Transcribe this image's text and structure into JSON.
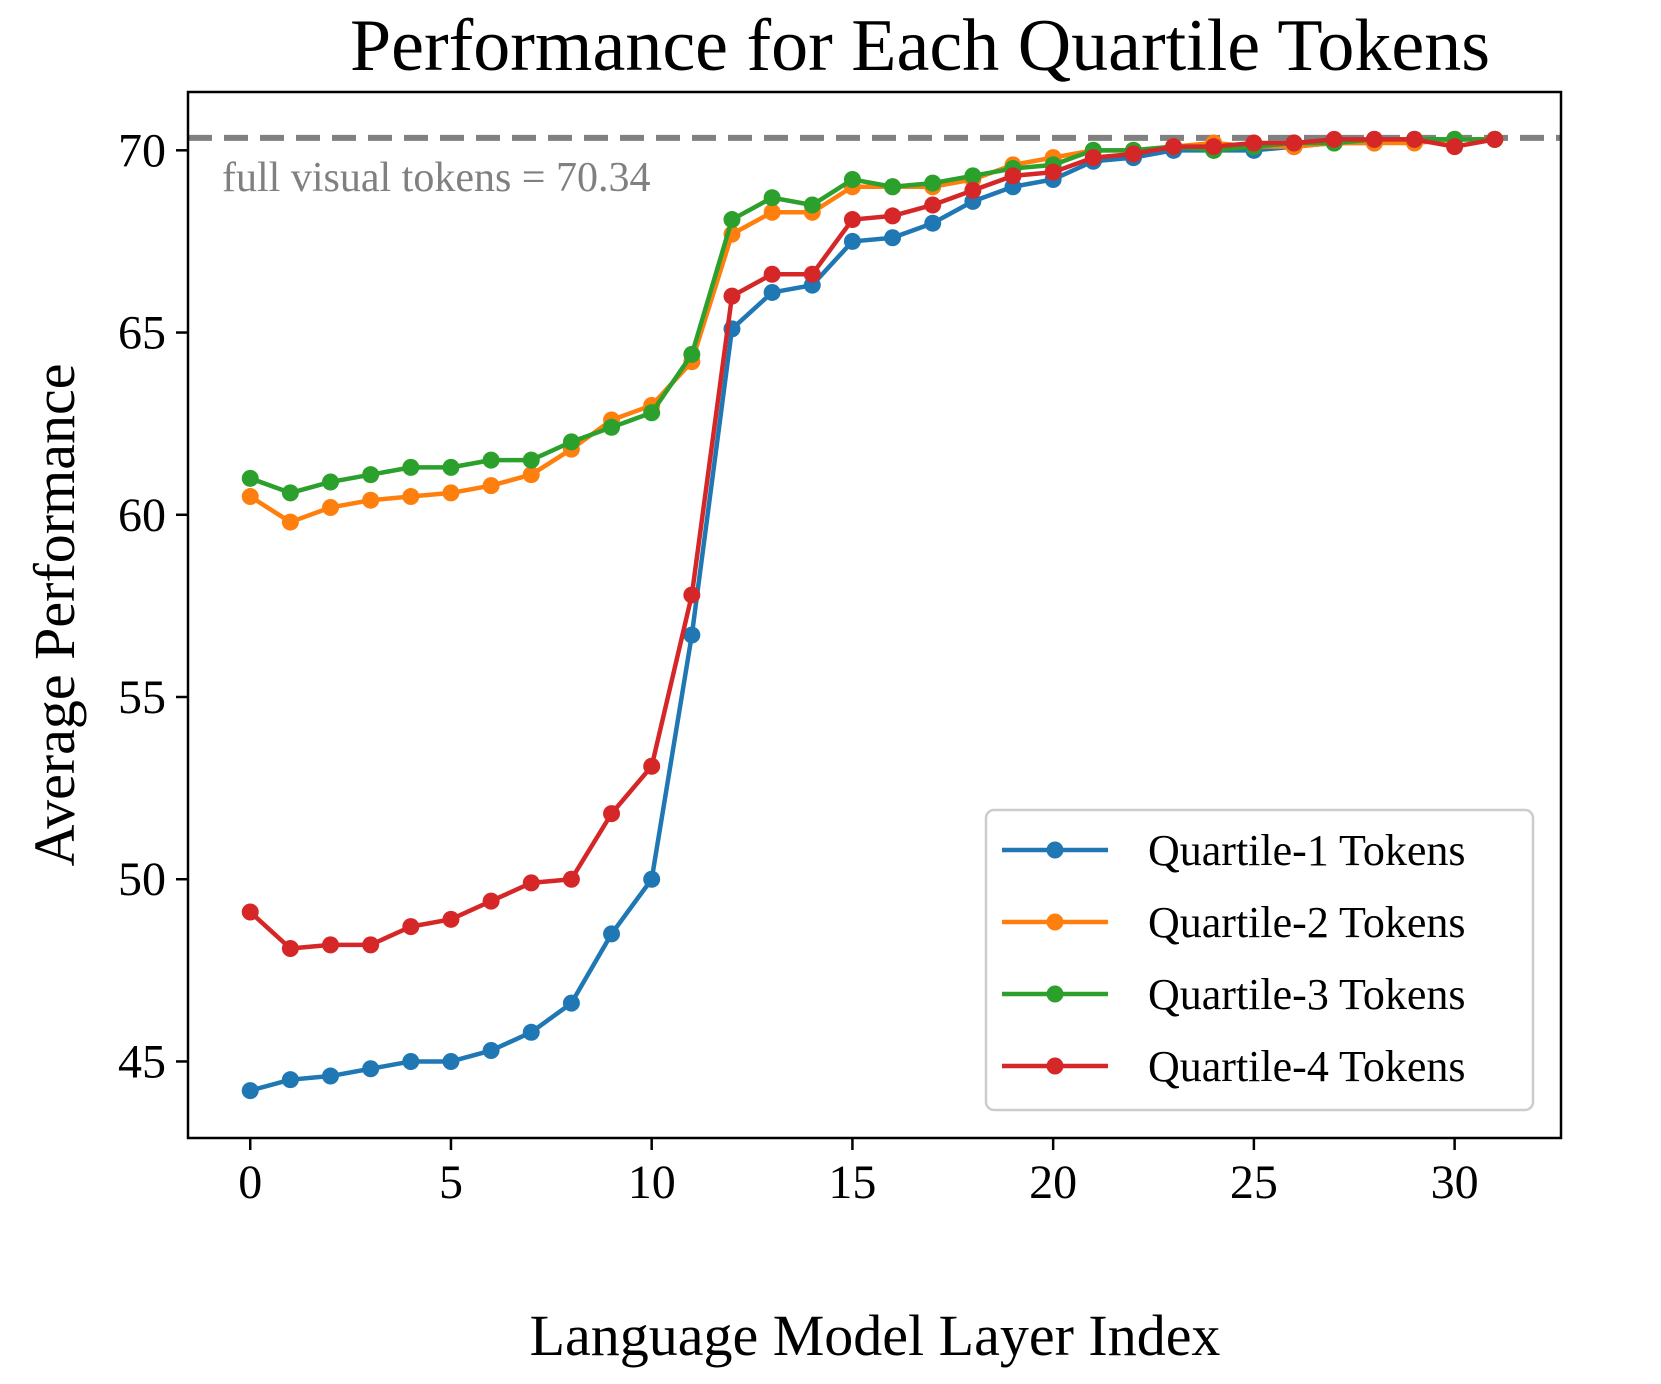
{
  "chart_data": {
    "type": "line",
    "title": "Performance for Each Quartile Tokens",
    "xlabel": "Language Model Layer Index",
    "ylabel": "Average Performance",
    "xlim": [
      -1.55,
      32.65
    ],
    "ylim": [
      42.9,
      71.6
    ],
    "xticks": [
      0,
      5,
      10,
      15,
      20,
      25,
      30
    ],
    "yticks": [
      45,
      50,
      55,
      60,
      65,
      70
    ],
    "grid": false,
    "legend_position": "lower-right",
    "reference_line": {
      "value": 70.34,
      "label": "full visual tokens = 70.34",
      "color": "#808080",
      "style": "dashed"
    },
    "x": [
      0,
      1,
      2,
      3,
      4,
      5,
      6,
      7,
      8,
      9,
      10,
      11,
      12,
      13,
      14,
      15,
      16,
      17,
      18,
      19,
      20,
      21,
      22,
      23,
      24,
      25,
      26,
      27,
      28,
      29,
      30,
      31
    ],
    "series": [
      {
        "name": "Quartile-1 Tokens",
        "color": "#1f77b4",
        "values": [
          44.2,
          44.5,
          44.6,
          44.8,
          45.0,
          45.0,
          45.3,
          45.8,
          46.6,
          48.5,
          50.0,
          56.7,
          65.1,
          66.1,
          66.3,
          67.5,
          67.6,
          68.0,
          68.6,
          69.0,
          69.2,
          69.7,
          69.8,
          70.0,
          70.0,
          70.0,
          70.1,
          70.2,
          70.2,
          70.3,
          70.3,
          70.3
        ]
      },
      {
        "name": "Quartile-2 Tokens",
        "color": "#ff7f0e",
        "values": [
          60.5,
          59.8,
          60.2,
          60.4,
          60.5,
          60.6,
          60.8,
          61.1,
          61.8,
          62.6,
          63.0,
          64.2,
          67.7,
          68.3,
          68.3,
          69.0,
          69.0,
          69.0,
          69.2,
          69.6,
          69.8,
          70.0,
          70.0,
          70.1,
          70.2,
          70.1,
          70.1,
          70.2,
          70.2,
          70.2,
          70.3,
          70.3
        ]
      },
      {
        "name": "Quartile-3 Tokens",
        "color": "#2ca02c",
        "values": [
          61.0,
          60.6,
          60.9,
          61.1,
          61.3,
          61.3,
          61.5,
          61.5,
          62.0,
          62.4,
          62.8,
          64.4,
          68.1,
          68.7,
          68.5,
          69.2,
          69.0,
          69.1,
          69.3,
          69.5,
          69.6,
          70.0,
          70.0,
          70.1,
          70.0,
          70.1,
          70.2,
          70.2,
          70.3,
          70.3,
          70.3,
          70.3
        ]
      },
      {
        "name": "Quartile-4 Tokens",
        "color": "#d62728",
        "values": [
          49.1,
          48.1,
          48.2,
          48.2,
          48.7,
          48.9,
          49.4,
          49.9,
          50.0,
          51.8,
          53.1,
          57.8,
          66.0,
          66.6,
          66.6,
          68.1,
          68.2,
          68.5,
          68.9,
          69.3,
          69.4,
          69.8,
          69.9,
          70.1,
          70.1,
          70.2,
          70.2,
          70.3,
          70.3,
          70.3,
          70.1,
          70.3
        ]
      }
    ]
  }
}
